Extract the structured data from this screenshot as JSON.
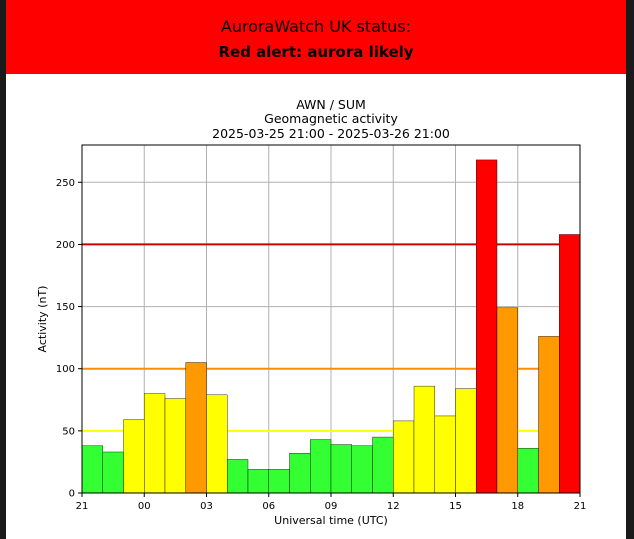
{
  "banner": {
    "title": "AuroraWatch UK status:",
    "status": "Red alert: aurora likely",
    "color": "#ff0000"
  },
  "chart_data": {
    "type": "bar",
    "title_lines": [
      "AWN / SUM",
      "Geomagnetic activity",
      "2025-03-25 21:00 - 2025-03-26 21:00"
    ],
    "xlabel": "Universal time (UTC)",
    "ylabel": "Activity (nT)",
    "ylim": [
      0,
      280
    ],
    "xlim": [
      0,
      24
    ],
    "grid": true,
    "x_ticks": [
      {
        "hour": 0,
        "label": "21"
      },
      {
        "hour": 3,
        "label": "00"
      },
      {
        "hour": 6,
        "label": "03"
      },
      {
        "hour": 9,
        "label": "06"
      },
      {
        "hour": 12,
        "label": "09"
      },
      {
        "hour": 15,
        "label": "12"
      },
      {
        "hour": 18,
        "label": "15"
      },
      {
        "hour": 21,
        "label": "18"
      },
      {
        "hour": 24,
        "label": "21"
      }
    ],
    "y_ticks": [
      0,
      50,
      100,
      150,
      200,
      250
    ],
    "thresholds": [
      {
        "value": 50,
        "color": "#ffff00"
      },
      {
        "value": 100,
        "color": "#ff8c00"
      },
      {
        "value": 200,
        "color": "#cc0000"
      }
    ],
    "status_colors": {
      "green": "#33ff33",
      "yellow": "#ffff00",
      "amber": "#ff9900",
      "red": "#ff0000"
    },
    "bars": [
      {
        "hour": "21:00",
        "value": 38,
        "status": "green"
      },
      {
        "hour": "22:00",
        "value": 33,
        "status": "green"
      },
      {
        "hour": "23:00",
        "value": 59,
        "status": "yellow"
      },
      {
        "hour": "00:00",
        "value": 80,
        "status": "yellow"
      },
      {
        "hour": "01:00",
        "value": 76,
        "status": "yellow"
      },
      {
        "hour": "02:00",
        "value": 105,
        "status": "amber"
      },
      {
        "hour": "03:00",
        "value": 79,
        "status": "yellow"
      },
      {
        "hour": "04:00",
        "value": 27,
        "status": "green"
      },
      {
        "hour": "05:00",
        "value": 19,
        "status": "green"
      },
      {
        "hour": "06:00",
        "value": 19,
        "status": "green"
      },
      {
        "hour": "07:00",
        "value": 32,
        "status": "green"
      },
      {
        "hour": "08:00",
        "value": 43,
        "status": "green"
      },
      {
        "hour": "09:00",
        "value": 39,
        "status": "green"
      },
      {
        "hour": "10:00",
        "value": 38,
        "status": "green"
      },
      {
        "hour": "11:00",
        "value": 45,
        "status": "green"
      },
      {
        "hour": "12:00",
        "value": 58,
        "status": "yellow"
      },
      {
        "hour": "13:00",
        "value": 86,
        "status": "yellow"
      },
      {
        "hour": "14:00",
        "value": 62,
        "status": "yellow"
      },
      {
        "hour": "15:00",
        "value": 84,
        "status": "yellow"
      },
      {
        "hour": "16:00",
        "value": 268,
        "status": "red"
      },
      {
        "hour": "17:00",
        "value": 149,
        "status": "amber"
      },
      {
        "hour": "18:00",
        "value": 36,
        "status": "green"
      },
      {
        "hour": "19:00",
        "value": 126,
        "status": "amber"
      },
      {
        "hour": "20:00",
        "value": 208,
        "status": "red"
      }
    ]
  }
}
